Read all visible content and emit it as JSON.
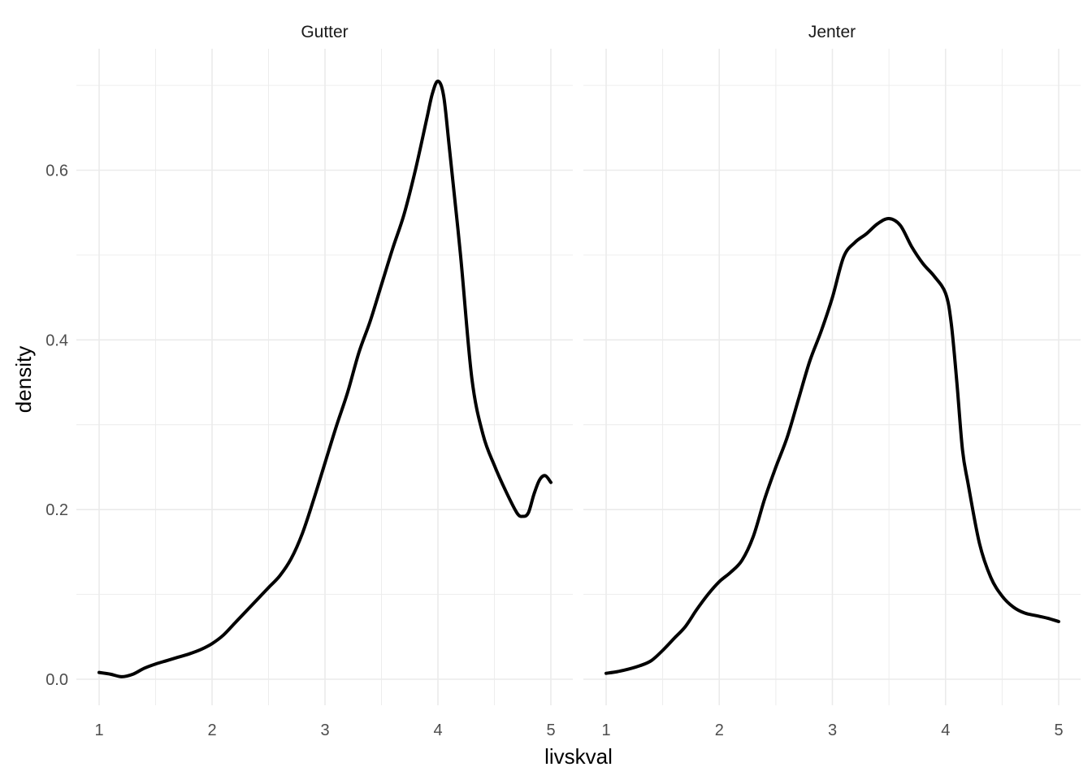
{
  "chart_data": {
    "type": "line",
    "xlabel": "livskval",
    "ylabel": "density",
    "xlim": [
      1,
      5
    ],
    "ylim": [
      0,
      0.72
    ],
    "x_ticks": [
      "1",
      "2",
      "3",
      "4",
      "5"
    ],
    "y_ticks": [
      "0.0",
      "0.2",
      "0.4",
      "0.6"
    ],
    "grid": true,
    "panels": [
      {
        "label": "Gutter",
        "series": [
          {
            "x": [
              1.0,
              1.1,
              1.2,
              1.3,
              1.4,
              1.5,
              1.6,
              1.7,
              1.8,
              1.9,
              2.0,
              2.1,
              2.2,
              2.3,
              2.4,
              2.5,
              2.6,
              2.7,
              2.8,
              2.9,
              3.0,
              3.1,
              3.2,
              3.3,
              3.4,
              3.5,
              3.6,
              3.7,
              3.8,
              3.9,
              3.95,
              4.0,
              4.05,
              4.1,
              4.2,
              4.3,
              4.4,
              4.5,
              4.6,
              4.7,
              4.75,
              4.8,
              4.85,
              4.9,
              4.95,
              5.0
            ],
            "y": [
              0.008,
              0.006,
              0.003,
              0.006,
              0.013,
              0.018,
              0.022,
              0.026,
              0.03,
              0.035,
              0.042,
              0.052,
              0.066,
              0.08,
              0.094,
              0.108,
              0.122,
              0.142,
              0.172,
              0.212,
              0.255,
              0.298,
              0.338,
              0.385,
              0.422,
              0.465,
              0.508,
              0.548,
              0.6,
              0.66,
              0.69,
              0.705,
              0.688,
              0.628,
              0.5,
              0.355,
              0.288,
              0.252,
              0.222,
              0.196,
              0.192,
              0.196,
              0.218,
              0.235,
              0.24,
              0.232
            ]
          }
        ]
      },
      {
        "label": "Jenter",
        "series": [
          {
            "x": [
              1.0,
              1.1,
              1.2,
              1.3,
              1.4,
              1.5,
              1.6,
              1.7,
              1.8,
              1.9,
              2.0,
              2.1,
              2.2,
              2.3,
              2.4,
              2.5,
              2.6,
              2.7,
              2.8,
              2.9,
              3.0,
              3.1,
              3.2,
              3.3,
              3.4,
              3.5,
              3.6,
              3.7,
              3.8,
              3.9,
              4.0,
              4.05,
              4.1,
              4.15,
              4.2,
              4.3,
              4.4,
              4.5,
              4.6,
              4.7,
              4.8,
              4.9,
              5.0
            ],
            "y": [
              0.007,
              0.009,
              0.012,
              0.016,
              0.022,
              0.034,
              0.048,
              0.062,
              0.082,
              0.1,
              0.115,
              0.126,
              0.14,
              0.168,
              0.212,
              0.25,
              0.285,
              0.33,
              0.375,
              0.41,
              0.45,
              0.498,
              0.515,
              0.525,
              0.537,
              0.543,
              0.535,
              0.51,
              0.49,
              0.475,
              0.455,
              0.42,
              0.35,
              0.27,
              0.23,
              0.16,
              0.12,
              0.098,
              0.085,
              0.078,
              0.075,
              0.072,
              0.068
            ]
          }
        ]
      }
    ]
  }
}
